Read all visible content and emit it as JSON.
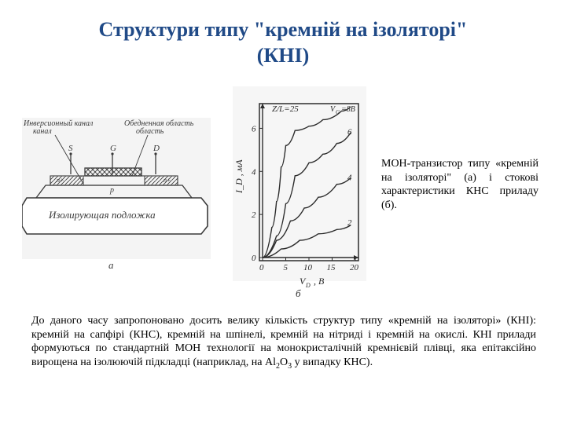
{
  "title_line1": "Структури типу \"кремній на ізоляторі\"",
  "title_line2": "(КНІ)",
  "caption_text": "МОН-транзистор типу «кремній на ізоляторі\" (а) і стокові характеристики КНС приладу (б).",
  "para_text_before": "До даного часу запропоновано досить велику кількість структур типу «кремній на ізоляторі» (КНІ): кремній на сапфірі (КНС), кремній на шпінелі, кремній на нітриді і кремній на окислі. КНІ прилади формуються по стандартній МОН технології на монокристалічній кремнієвій плівці, яка епітаксійно вирощена на ізолюючій підкладці (наприклад, на Al",
  "para_text_after": " у випадку КНС).",
  "sub1": "2",
  "sub2": "3",
  "diagram_a": {
    "label_inversion": "Инверсионный канал",
    "label_depletion": "Обедненная область",
    "label_S": "S",
    "label_G": "G",
    "label_D": "D",
    "label_p": "p",
    "label_substrate": "Изолирующая подложка",
    "label_fig": "а",
    "bg": "#f4f4f4",
    "line": "#3a3a3a",
    "textsize": 10,
    "smalltext": 9,
    "fontstyle": "italic"
  },
  "graph_b": {
    "bg": "#f6f6f6",
    "axis_color": "#2b2b2b",
    "line_color": "#2b2b2b",
    "x_label": "V_D , B",
    "y_label": "I_D , мA",
    "title": "Z/L=25",
    "vg_label": "V_G =8В",
    "curve_labels": [
      "6",
      "4",
      "2"
    ],
    "x_ticks": [
      0,
      5,
      10,
      15,
      20
    ],
    "y_ticks": [
      0,
      2,
      4,
      6
    ],
    "xlim": [
      0,
      20
    ],
    "ylim": [
      0,
      7
    ],
    "label_fig": "б",
    "curves": [
      [
        [
          0,
          0
        ],
        [
          2,
          1.4
        ],
        [
          3,
          2.6
        ],
        [
          4,
          4.2
        ],
        [
          5,
          5.2
        ],
        [
          7,
          5.9
        ],
        [
          10,
          6.1
        ],
        [
          13,
          6.4
        ],
        [
          17,
          6.8
        ],
        [
          19,
          7.0
        ]
      ],
      [
        [
          0,
          0
        ],
        [
          3,
          1.0
        ],
        [
          5,
          2.5
        ],
        [
          7,
          3.8
        ],
        [
          10,
          4.4
        ],
        [
          13,
          4.8
        ],
        [
          16,
          5.3
        ],
        [
          19,
          5.8
        ]
      ],
      [
        [
          0,
          0
        ],
        [
          3,
          0.8
        ],
        [
          6,
          1.7
        ],
        [
          9,
          2.3
        ],
        [
          12,
          2.8
        ],
        [
          16,
          3.4
        ],
        [
          19,
          3.7
        ]
      ],
      [
        [
          0,
          0
        ],
        [
          4,
          0.4
        ],
        [
          8,
          0.8
        ],
        [
          12,
          1.1
        ],
        [
          16,
          1.3
        ],
        [
          19,
          1.5
        ]
      ]
    ],
    "linew": 1.4,
    "ticksize": 11
  }
}
